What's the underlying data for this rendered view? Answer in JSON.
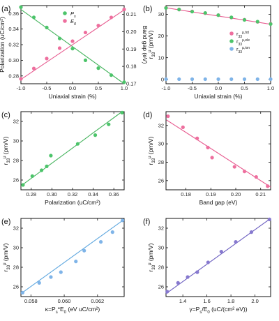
{
  "colors": {
    "green": "#4cc46a",
    "green_line": "#46b45e",
    "pink": "#ee6f9e",
    "pink_line": "#e75a8f",
    "blue": "#7fb4e8",
    "blue_line": "#5ea7df",
    "purple": "#8779cf",
    "purple_line": "#6c5fc0",
    "frame": "#111111"
  },
  "chart_data": [
    {
      "panel": "(a)",
      "type": "scatter",
      "xlabel": "Uniaxial strain (%)",
      "ylabel": "Polarization (uC/cm²)",
      "ylabel_right": "Band gap (eV)",
      "xlim": [
        -1.0,
        1.0
      ],
      "ylim": [
        0.27,
        0.37
      ],
      "ylim_right": [
        0.17,
        0.215
      ],
      "xticks": [
        "-1.0",
        "-0.5",
        "0.0",
        "0.5",
        "1.0"
      ],
      "yticks": [
        "0.28",
        "0.30",
        "0.32",
        "0.34",
        "0.36"
      ],
      "yticks_right": [
        "0.17",
        "0.18",
        "0.19",
        "0.20",
        "0.21"
      ],
      "legend": "top-left",
      "series": [
        {
          "name": "P_s",
          "axis": "left",
          "color": "green",
          "x": [
            -1.0,
            -0.75,
            -0.5,
            -0.25,
            0.0,
            0.25,
            0.5,
            0.75,
            1.0
          ],
          "y": [
            0.368,
            0.355,
            0.342,
            0.328,
            0.315,
            0.3,
            0.29,
            0.281,
            0.272
          ],
          "fit": [
            [
              -1.0,
              0.365
            ],
            [
              1.0,
              0.27
            ]
          ]
        },
        {
          "name": "E_0",
          "axis": "right",
          "color": "pink",
          "x": [
            -1.0,
            -0.75,
            -0.5,
            -0.25,
            0.0,
            0.25,
            0.5,
            0.75,
            1.0
          ],
          "y": [
            0.1728,
            0.1788,
            0.1845,
            0.1905,
            0.1945,
            0.1995,
            0.2035,
            0.2082,
            0.2128
          ],
          "fit": [
            [
              -1.0,
              0.1725
            ],
            [
              1.0,
              0.2125
            ]
          ]
        }
      ]
    },
    {
      "panel": "(b)",
      "type": "scatter",
      "xlabel": "Uniaxial strain (%)",
      "ylabel": "r_33^μ (pm/V)",
      "xlim": [
        -1.0,
        1.0
      ],
      "ylim": [
        -2,
        34
      ],
      "xticks": [
        "-1.0",
        "-0.5",
        "0.0",
        "0.5",
        "1.0"
      ],
      "yticks": [
        "0",
        "10",
        "20",
        "30"
      ],
      "legend": "right",
      "series": [
        {
          "name": "r_33^μ,tot",
          "color": "pink",
          "x": [
            -1.0,
            -0.75,
            -0.5,
            -0.25,
            0.0,
            0.25,
            0.5,
            0.75,
            1.0
          ],
          "y": [
            33.0,
            32.2,
            31.3,
            30.5,
            29.6,
            28.5,
            27.5,
            26.5,
            25.6
          ],
          "fit": [
            [
              -1.0,
              33.0
            ],
            [
              1.0,
              25.4
            ]
          ]
        },
        {
          "name": "r_33^μ,ele",
          "color": "green",
          "x": [
            -1.0,
            -0.75,
            -0.5,
            -0.25,
            0.0,
            0.25,
            0.5,
            0.75,
            1.0
          ],
          "y": [
            32.9,
            32.2,
            31.2,
            30.6,
            29.6,
            28.6,
            27.4,
            26.6,
            25.5
          ]
        },
        {
          "name": "r_33^μ,ion",
          "color": "blue",
          "x": [
            -1.0,
            -0.75,
            -0.5,
            -0.25,
            0.0,
            0.25,
            0.5,
            0.75,
            1.0
          ],
          "y": [
            0.1,
            0.1,
            0.1,
            0.1,
            0.1,
            0.1,
            0.1,
            0.1,
            0.1
          ]
        }
      ]
    },
    {
      "panel": "(c)",
      "type": "scatter",
      "xlabel": "Polarization (uC/cm²)",
      "ylabel": "r_33^μ (pm/V)",
      "xlim": [
        0.27,
        0.37
      ],
      "ylim": [
        25,
        33
      ],
      "xticks": [
        "0.28",
        "0.30",
        "0.32",
        "0.34",
        "0.36"
      ],
      "yticks": [
        "26",
        "28",
        "30",
        "32"
      ],
      "series": [
        {
          "name": "",
          "color": "green",
          "x": [
            0.272,
            0.281,
            0.29,
            0.295,
            0.299,
            0.325,
            0.342,
            0.355,
            0.368
          ],
          "y": [
            25.5,
            26.4,
            27.0,
            27.4,
            28.5,
            29.7,
            30.6,
            31.7,
            32.9
          ],
          "fit": [
            [
              0.27,
              25.4
            ],
            [
              0.368,
              33.0
            ]
          ]
        }
      ]
    },
    {
      "panel": "(d)",
      "type": "scatter",
      "xlabel": "Band gap (eV)",
      "ylabel": "r_33^μ (pm/V)",
      "xlim": [
        0.172,
        0.214
      ],
      "ylim": [
        25,
        33.5
      ],
      "xticks": [
        "0.18",
        "0.19",
        "0.20",
        "0.21"
      ],
      "yticks": [
        "26",
        "28",
        "30",
        "32"
      ],
      "series": [
        {
          "name": "",
          "color": "pink",
          "x": [
            0.1728,
            0.1788,
            0.1845,
            0.1888,
            0.1905,
            0.1995,
            0.2035,
            0.2082,
            0.2128
          ],
          "y": [
            33.0,
            31.8,
            30.6,
            29.6,
            28.5,
            27.5,
            27.0,
            26.4,
            25.4
          ],
          "fit": [
            [
              0.1722,
              32.6
            ],
            [
              0.214,
              25.3
            ]
          ]
        }
      ]
    },
    {
      "panel": "(e)",
      "type": "scatter",
      "xlabel": "κ=P_s*E_0 (eV uC/cm²)",
      "ylabel": "r_33^μ (pm/V)",
      "xlim": [
        0.0574,
        0.0636
      ],
      "ylim": [
        25,
        33
      ],
      "xticks": [
        "0.058",
        "0.060",
        "0.062"
      ],
      "yticks": [
        "26",
        "28",
        "30",
        "32"
      ],
      "series": [
        {
          "name": "",
          "color": "blue",
          "x": [
            0.0575,
            0.0585,
            0.0592,
            0.0598,
            0.0607,
            0.0612,
            0.0622,
            0.0629,
            0.0635
          ],
          "y": [
            25.4,
            26.4,
            27.0,
            27.5,
            28.6,
            29.7,
            30.6,
            31.6,
            32.8
          ],
          "fit": [
            [
              0.0574,
              25.3
            ],
            [
              0.0636,
              32.9
            ]
          ]
        }
      ]
    },
    {
      "panel": "(f)",
      "type": "scatter",
      "xlabel": "γ=P_s/E_0 (uC/(cm² eV))",
      "ylabel": "r_33^μ (pm/V)",
      "xlim": [
        1.26,
        2.13
      ],
      "ylim": [
        25,
        33
      ],
      "xticks": [
        "1.4",
        "1.6",
        "1.8",
        "2.0"
      ],
      "yticks": [
        "26",
        "28",
        "30",
        "32"
      ],
      "series": [
        {
          "name": "",
          "color": "purple",
          "x": [
            1.27,
            1.36,
            1.44,
            1.52,
            1.61,
            1.72,
            1.84,
            1.97,
            2.12
          ],
          "y": [
            25.5,
            26.4,
            27.0,
            27.5,
            28.5,
            29.6,
            30.6,
            31.6,
            32.9
          ],
          "fit": [
            [
              1.26,
              25.3
            ],
            [
              2.13,
              33.0
            ]
          ]
        }
      ]
    }
  ]
}
